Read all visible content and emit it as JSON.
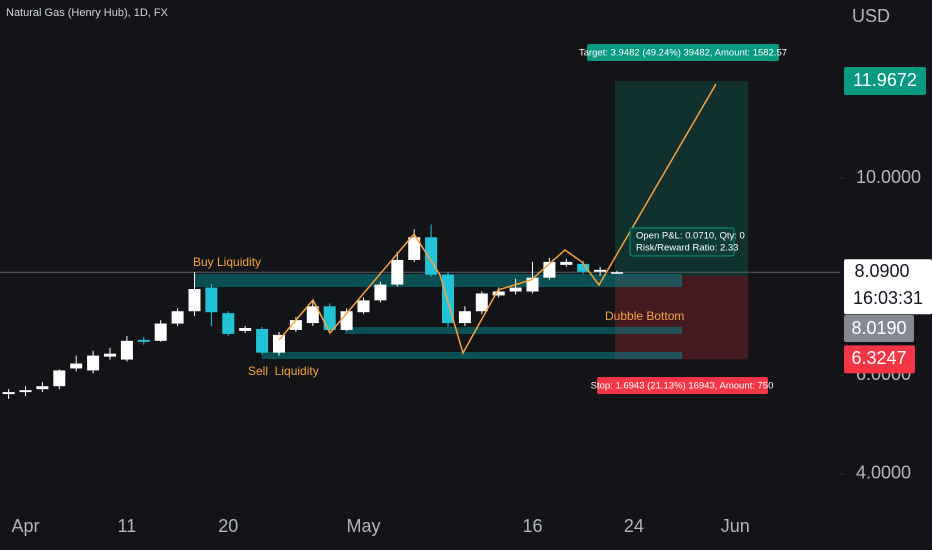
{
  "chart_data": {
    "type": "candlestick",
    "title": "Natural Gas (Henry Hub), 1D, FX",
    "currency": "USD",
    "categories": [
      null,
      "Apr",
      null,
      null,
      null,
      null,
      null,
      "11",
      null,
      null,
      null,
      null,
      null,
      "20",
      null,
      null,
      null,
      null,
      null,
      null,
      null,
      "May",
      null,
      null,
      null,
      null,
      null,
      null,
      null,
      null,
      null,
      "16",
      null,
      null,
      null,
      null,
      null,
      "24",
      null,
      null,
      null,
      null,
      null,
      "Jun",
      null,
      null,
      null,
      null,
      null
    ],
    "open": [
      5.62,
      5.66,
      5.72,
      5.78,
      6.14,
      6.1,
      6.38,
      6.32,
      6.72,
      6.7,
      7.05,
      7.3,
      7.78,
      7.26,
      6.9,
      6.94,
      6.46,
      6.92,
      7.06,
      7.4,
      6.92,
      7.28,
      7.52,
      7.84,
      8.34,
      8.8,
      8.04,
      7.06,
      7.3,
      7.62,
      7.7,
      7.7,
      7.98,
      8.24,
      8.26,
      8.1,
      8.08,
      null,
      null,
      null,
      null,
      null,
      null,
      null,
      null,
      null,
      null,
      null,
      null
    ],
    "high": [
      5.72,
      5.78,
      5.86,
      6.12,
      6.4,
      6.5,
      6.56,
      6.8,
      6.78,
      7.12,
      7.36,
      8.09,
      7.85,
      7.3,
      7.0,
      6.98,
      6.88,
      7.18,
      7.52,
      7.46,
      7.36,
      7.58,
      7.9,
      8.5,
      8.96,
      9.06,
      8.1,
      7.4,
      7.7,
      7.78,
      7.96,
      8.3,
      8.38,
      8.36,
      8.32,
      8.2,
      8.12,
      null,
      null,
      null,
      null,
      null,
      null,
      null,
      null,
      null,
      null,
      null,
      null
    ],
    "low": [
      5.52,
      5.58,
      5.66,
      5.72,
      6.08,
      6.04,
      6.32,
      6.28,
      6.62,
      6.68,
      7.0,
      7.2,
      7.0,
      6.8,
      6.86,
      6.42,
      6.4,
      6.88,
      7.0,
      6.88,
      6.9,
      7.24,
      7.48,
      7.8,
      8.3,
      8.0,
      6.98,
      7.0,
      7.24,
      7.58,
      7.64,
      7.66,
      7.94,
      8.2,
      8.06,
      8.02,
      8.06,
      null,
      null,
      null,
      null,
      null,
      null,
      null,
      null,
      null,
      null,
      null,
      null
    ],
    "close": [
      5.66,
      5.7,
      5.78,
      6.1,
      6.24,
      6.4,
      6.44,
      6.7,
      6.68,
      7.05,
      7.3,
      7.75,
      7.28,
      6.84,
      6.96,
      6.46,
      6.82,
      7.12,
      7.4,
      6.92,
      7.3,
      7.52,
      7.84,
      8.34,
      8.8,
      8.04,
      7.06,
      7.3,
      7.66,
      7.7,
      7.78,
      7.98,
      8.3,
      8.3,
      8.1,
      8.14,
      8.09,
      null,
      null,
      null,
      null,
      null,
      null,
      null,
      null,
      null,
      null,
      null,
      null
    ],
    "up_color": "#ffffff",
    "down_color": "#22c3d6",
    "ylim": [
      3.27,
      13.61
    ],
    "yticks": [
      {
        "value": 4,
        "label": "4.0000"
      },
      {
        "value": 6,
        "label": "6.0000"
      },
      {
        "value": 10,
        "label": "10.0000"
      }
    ],
    "last_price": {
      "value": 8.09,
      "label": "8.0900",
      "countdown": "16:03:31"
    },
    "position": {
      "target": {
        "value": 11.9672,
        "label": "11.9672"
      },
      "entry": {
        "value": 8.019,
        "label": "8.0190"
      },
      "stop": {
        "value": 6.3247,
        "label": "6.3247"
      },
      "target_text": "Target: 3.9482 (49.24%) 39482, Amount: 1582.57",
      "stop_text": "Stop: 1.6943 (21.13%) 16943, Amount: 750",
      "pnl_text": "Open P&L: 0.0710, Qty: 0",
      "rr_text": "Risk/Reward Ratio: 2.33"
    },
    "annotations": [
      "Buy Liquidity",
      "Sell  Liquidity",
      "Dubble Bottom"
    ]
  }
}
